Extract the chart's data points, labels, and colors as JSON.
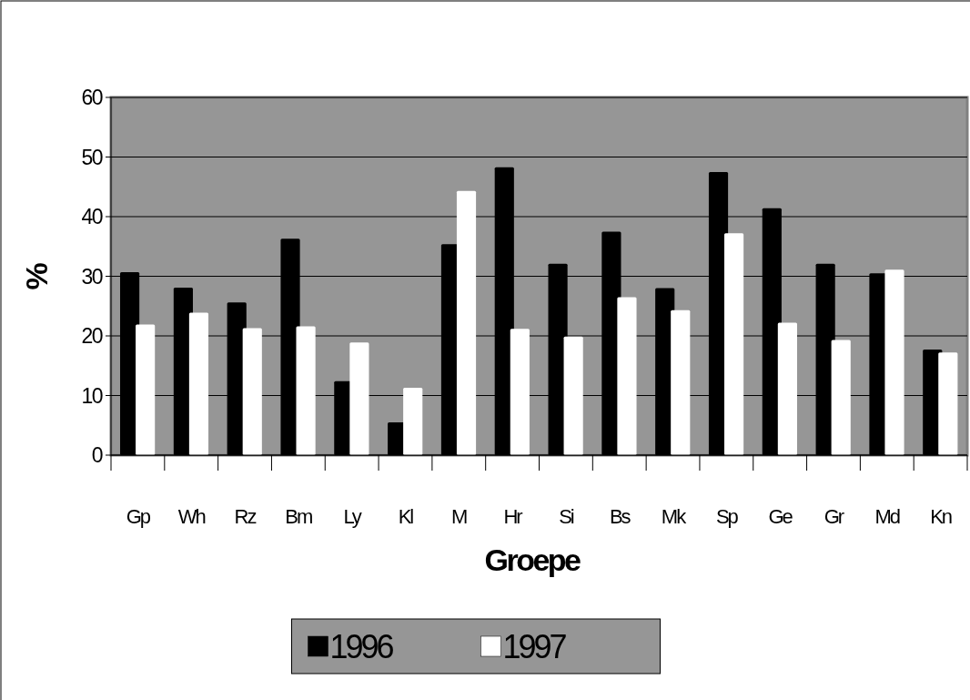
{
  "chart_data": {
    "type": "bar",
    "xlabel": "Groepe",
    "ylabel": "%",
    "categories": [
      "Gp",
      "Wh",
      "Rz",
      "Bm",
      "Ly",
      "Kl",
      "M",
      "Hr",
      "Si",
      "Bs",
      "Mk",
      "Sp",
      "Ge",
      "Gr",
      "Md",
      "Kn"
    ],
    "series": [
      {
        "name": "1996",
        "color": "#000000",
        "values": [
          30.7,
          28.1,
          25.6,
          36.3,
          12.4,
          5.5,
          35.4,
          48.3,
          32.1,
          37.5,
          28.0,
          47.5,
          41.4,
          32.1,
          30.5,
          17.7
        ]
      },
      {
        "name": "1997",
        "color": "#ffffff",
        "values": [
          21.9,
          23.9,
          21.3,
          21.6,
          18.9,
          11.3,
          44.3,
          21.2,
          19.9,
          26.5,
          24.3,
          37.2,
          22.2,
          19.3,
          31.1,
          17.2
        ]
      }
    ],
    "ylim": [
      0,
      60
    ],
    "yticks": [
      0,
      10,
      20,
      30,
      40,
      50,
      60
    ],
    "grid": "y",
    "legend": "bottom"
  }
}
